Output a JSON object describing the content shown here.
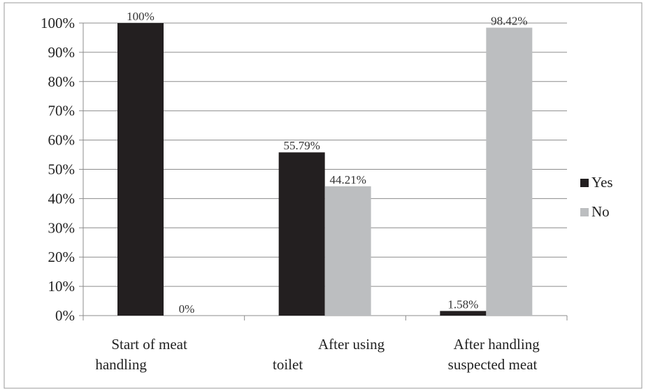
{
  "chart_data": {
    "type": "bar",
    "categories": [
      [
        "Start of  meat",
        "handling"
      ],
      [
        "After using",
        "toilet"
      ],
      [
        "After handling",
        "suspected meat"
      ]
    ],
    "series": [
      {
        "name": "Yes",
        "values": [
          100,
          55.79,
          1.58
        ],
        "labels": [
          "100%",
          "55.79%",
          "1.58%"
        ],
        "color": "#231f20"
      },
      {
        "name": "No",
        "values": [
          0,
          44.21,
          98.42
        ],
        "labels": [
          "0%",
          "44.21%",
          "98.42%"
        ],
        "color": "#bcbec0"
      }
    ],
    "yticks": [
      "0%",
      "10%",
      "20%",
      "30%",
      "40%",
      "50%",
      "60%",
      "70%",
      "80%",
      "90%",
      "100%"
    ],
    "ylim": [
      0,
      100
    ],
    "grid": true,
    "legend_position": "right",
    "title": "",
    "xlabel": "",
    "ylabel": ""
  }
}
